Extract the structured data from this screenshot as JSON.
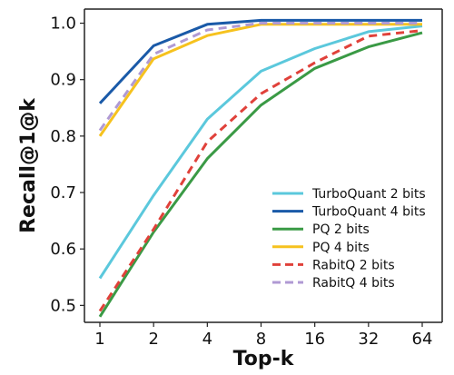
{
  "chart_data": {
    "type": "line",
    "title": "",
    "xlabel": "Top-k",
    "ylabel": "Recall@1@k",
    "x": [
      "1",
      "2",
      "4",
      "8",
      "16",
      "32",
      "64"
    ],
    "ylim": [
      0.47,
      1.025
    ],
    "yticks": [
      "0.5",
      "0.6",
      "0.7",
      "0.8",
      "0.9",
      "1.0"
    ],
    "grid": false,
    "legend_position": "bottom-right",
    "series": [
      {
        "name": "TurboQuant 2 bits",
        "color": "#5bc8dc",
        "dashed": false,
        "values": [
          0.548,
          0.695,
          0.83,
          0.915,
          0.955,
          0.985,
          0.995
        ]
      },
      {
        "name": "TurboQuant 4 bits",
        "color": "#1a5aa8",
        "dashed": false,
        "values": [
          0.858,
          0.96,
          0.998,
          1.005,
          1.005,
          1.005,
          1.005
        ]
      },
      {
        "name": "PQ 2 bits",
        "color": "#3a9a45",
        "dashed": false,
        "values": [
          0.48,
          0.63,
          0.76,
          0.855,
          0.92,
          0.958,
          0.983
        ]
      },
      {
        "name": "PQ 4 bits",
        "color": "#f6c21e",
        "dashed": false,
        "values": [
          0.8,
          0.937,
          0.978,
          0.998,
          0.998,
          0.998,
          0.998
        ]
      },
      {
        "name": "RabitQ 2 bits",
        "color": "#e0413a",
        "dashed": true,
        "values": [
          0.49,
          0.635,
          0.79,
          0.875,
          0.93,
          0.977,
          0.987
        ]
      },
      {
        "name": "RabitQ 4 bits",
        "color": "#b09ad4",
        "dashed": true,
        "values": [
          0.81,
          0.945,
          0.988,
          1.0,
          1.0,
          1.0,
          1.0
        ]
      }
    ]
  }
}
